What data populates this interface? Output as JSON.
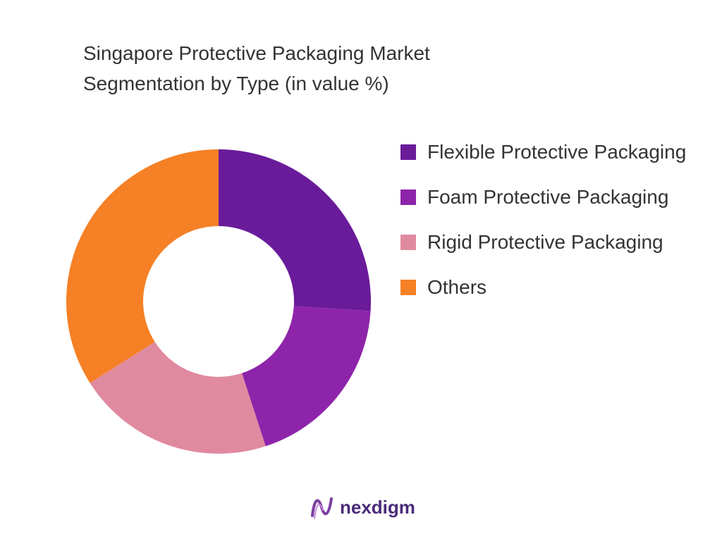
{
  "chart_data": {
    "type": "pie",
    "title": "Singapore Protective Packaging Market\nSegmentation by  Type (in value %)",
    "categories": [
      "Flexible Protective Packaging",
      "Foam Protective Packaging",
      "Rigid Protective Packaging",
      "Others"
    ],
    "values": [
      26,
      19,
      21,
      34
    ],
    "colors": [
      "#6a1b9a",
      "#8e24aa",
      "#e08aa0",
      "#f58025"
    ],
    "legend": "right"
  },
  "footer": {
    "logo": "nexdigm"
  }
}
